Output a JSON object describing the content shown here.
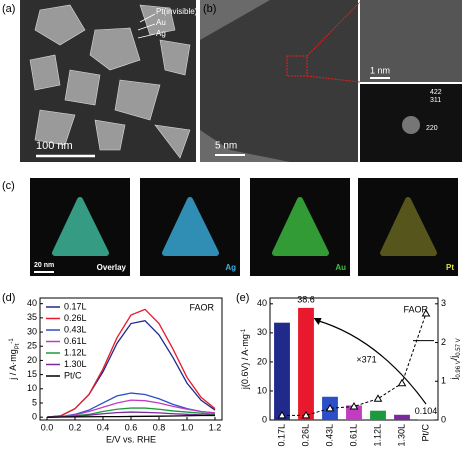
{
  "panels": {
    "a": {
      "label": "(a)",
      "annotations": [
        "Pt(invisible)",
        "Au",
        "Ag"
      ],
      "scale_bar": "100 nm"
    },
    "b": {
      "label": "(b)",
      "scale_bar": "5 nm",
      "inset_scale_bar": "1 nm",
      "fft_labels": [
        "422",
        "311",
        "220"
      ]
    },
    "c": {
      "label": "(c)",
      "maps": [
        "Overlay",
        "Ag",
        "Au",
        "Pt"
      ],
      "scale_bar": "20 nm"
    },
    "d": {
      "label": "(d)"
    },
    "e": {
      "label": "(e)"
    }
  },
  "chart_data": [
    {
      "type": "line",
      "annotation": "FAOR",
      "xlabel": "E/V vs. RHE",
      "ylabel": "j / A·mg",
      "ylabel_sub": "Pt",
      "ylabel_sup": "-1",
      "x": [
        0,
        0.1,
        0.2,
        0.3,
        0.4,
        0.5,
        0.6,
        0.7,
        0.8,
        0.9,
        1.0,
        1.1,
        1.2
      ],
      "xlim": [
        -0.05,
        1.25
      ],
      "xticks": [
        {
          "value": 0,
          "label": "0.0"
        },
        0.2,
        0.4,
        0.6,
        0.8,
        {
          "value": 1,
          "label": "1.0"
        },
        1.2
      ],
      "ylim": [
        -1,
        42
      ],
      "yticks": [
        0,
        5,
        10,
        15,
        20,
        25,
        30,
        35,
        40
      ],
      "series": [
        {
          "name": "0.17L",
          "color": "#1f2a8a",
          "values": [
            0,
            0.5,
            3,
            8,
            16,
            26,
            33,
            34,
            29,
            21,
            12,
            6,
            2.5
          ]
        },
        {
          "name": "0.26L",
          "color": "#e8192c",
          "values": [
            0,
            0.5,
            3,
            8,
            17,
            28,
            36,
            38,
            33,
            24,
            14,
            7,
            3
          ]
        },
        {
          "name": "0.43L",
          "color": "#2a4fc8",
          "values": [
            0,
            0.2,
            1,
            2.5,
            5,
            7.5,
            8.5,
            8,
            6.5,
            4.5,
            3,
            2,
            1.5
          ]
        },
        {
          "name": "0.61L",
          "color": "#c03cc0",
          "values": [
            0,
            0.2,
            0.8,
            2,
            3.5,
            5,
            6,
            5.8,
            5,
            3.8,
            2.8,
            2,
            1.5
          ]
        },
        {
          "name": "1.12L",
          "color": "#1a9a3a",
          "values": [
            0,
            0.1,
            0.5,
            1,
            2,
            2.8,
            3.2,
            3.2,
            2.8,
            2.2,
            1.8,
            1.4,
            1
          ]
        },
        {
          "name": "1.30L",
          "color": "#7a2a9a",
          "values": [
            0,
            0.1,
            0.3,
            0.7,
            1.2,
            1.6,
            1.8,
            1.7,
            1.5,
            1.2,
            1,
            0.8,
            0.6
          ]
        },
        {
          "name": "Pt/C",
          "color": "#000000",
          "values": [
            0,
            0.05,
            0.1,
            0.15,
            0.2,
            0.2,
            0.25,
            0.3,
            0.35,
            0.4,
            0.5,
            0.6,
            0.6
          ]
        }
      ]
    },
    {
      "type": "bar",
      "annotation": "FAOR",
      "ratio_label": "×371",
      "ylabel": "j(0.6V) / A·mg",
      "ylabel_sup": "-1",
      "y2label_parts": [
        "j",
        "0.96 V",
        "/j",
        "0.57 V"
      ],
      "categories": [
        "0.17L",
        "0.26L",
        "0.43L",
        "0.61L",
        "1.12L",
        "1.30L",
        "Pt/C"
      ],
      "ylim": [
        0,
        42
      ],
      "yticks": [
        0,
        10,
        20,
        30,
        40
      ],
      "y2lim": [
        0,
        3.15
      ],
      "y2ticks": [
        0,
        1,
        2,
        3
      ],
      "series": [
        {
          "values": [
            33.5,
            38.6,
            8,
            5,
            3.2,
            1.8,
            0.104
          ],
          "colors": [
            "#1f2a8a",
            "#e8192c",
            "#2a4fc8",
            "#c03cc0",
            "#1a9a3a",
            "#7a2a9a",
            "#888888"
          ]
        },
        {
          "values": [
            0.12,
            0.12,
            0.3,
            0.35,
            0.55,
            0.95,
            2.75
          ],
          "axis": "y2",
          "color": "#000000"
        }
      ]
    }
  ]
}
